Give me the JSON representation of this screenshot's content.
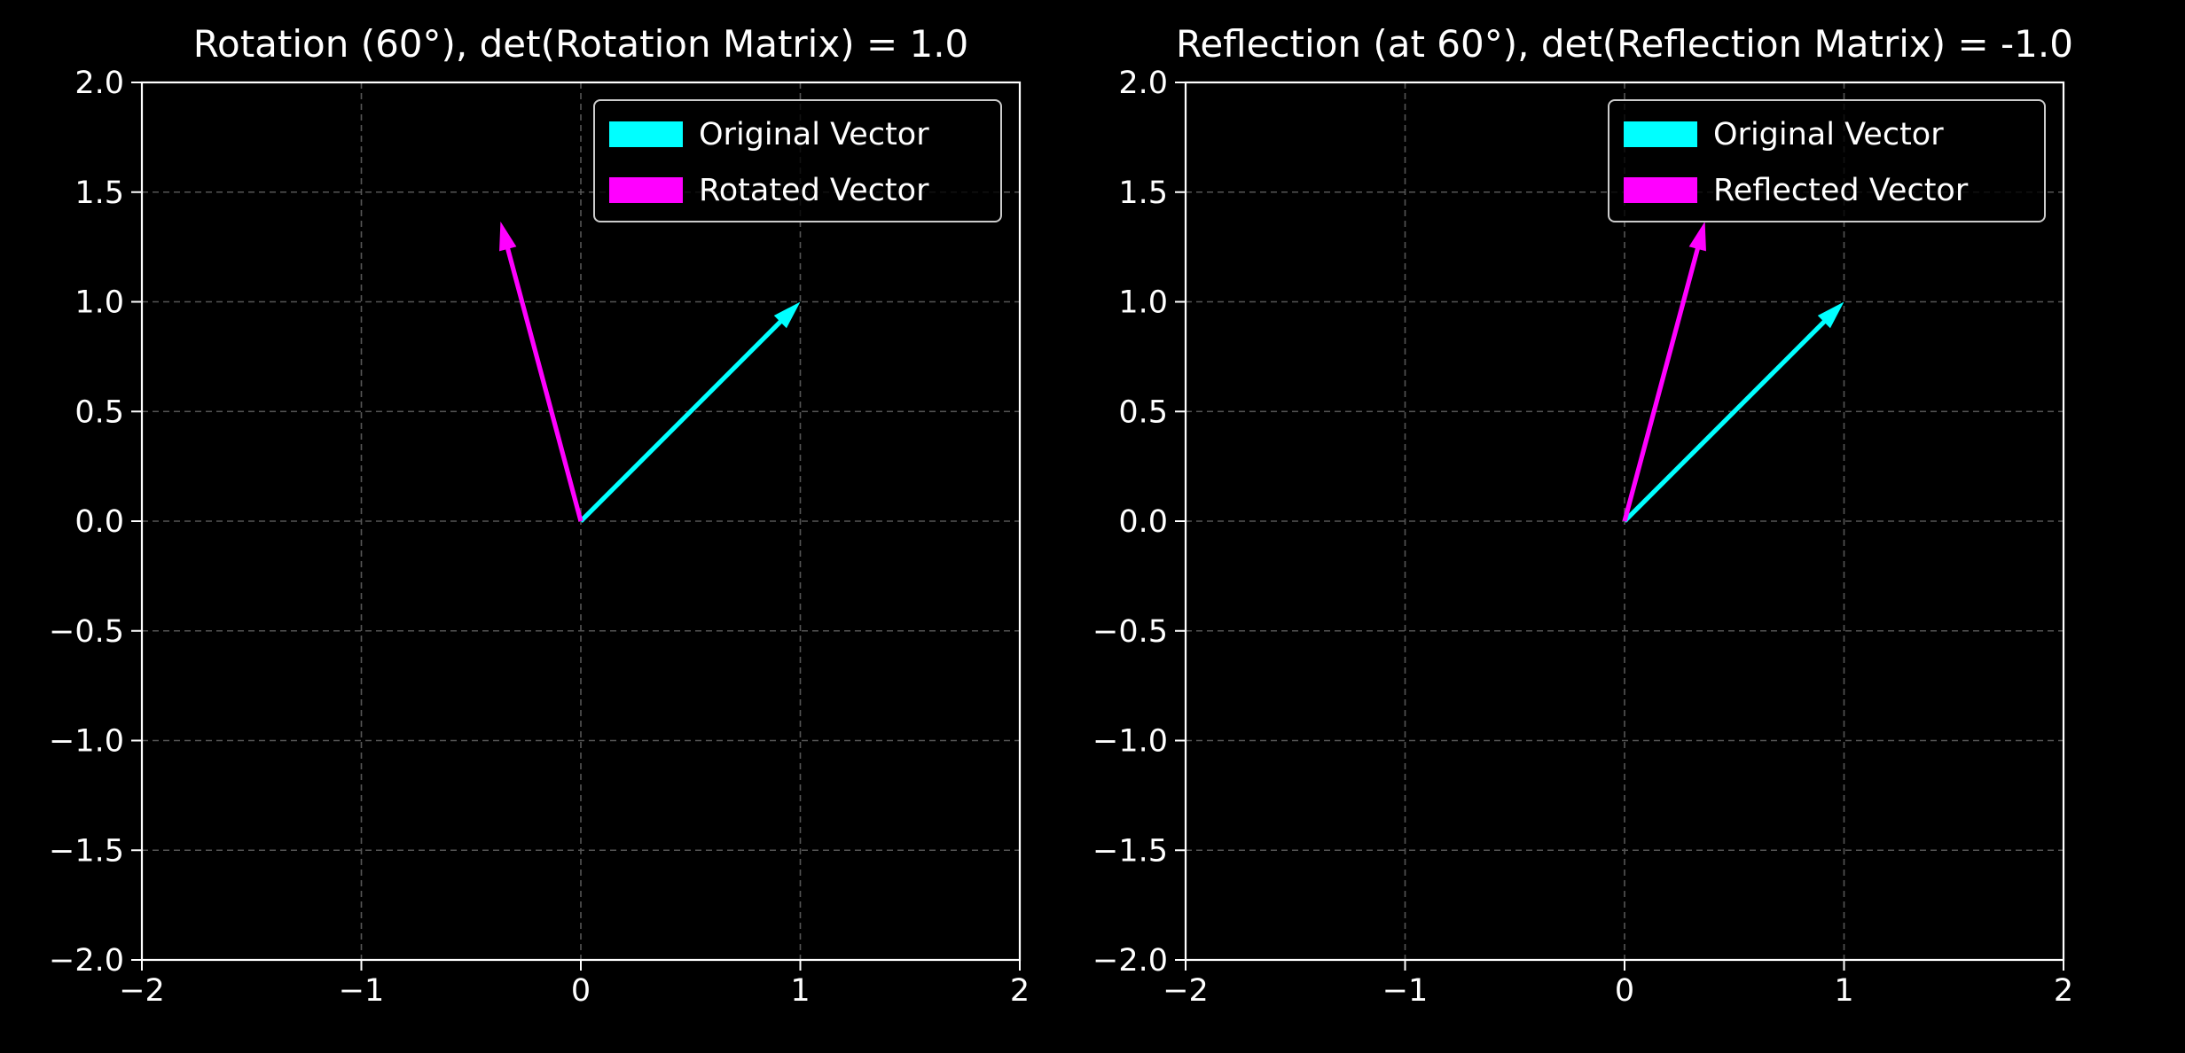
{
  "colors": {
    "background": "#000000",
    "axes": "#ffffff",
    "grid": "#555555",
    "original": "#00ffff",
    "transformed": "#ff00ff"
  },
  "chart_data": [
    {
      "type": "vector",
      "title": "Rotation (60°), det(Rotation Matrix) = 1.0",
      "xlim": [
        -2,
        2
      ],
      "ylim": [
        -2,
        2
      ],
      "xticks": [
        -2,
        -1,
        0,
        1,
        2
      ],
      "yticks": [
        -2.0,
        -1.5,
        -1.0,
        -0.5,
        0.0,
        0.5,
        1.0,
        1.5,
        2.0
      ],
      "xtick_labels": [
        "−2",
        "−1",
        "0",
        "1",
        "2"
      ],
      "ytick_labels": [
        "−2.0",
        "−1.5",
        "−1.0",
        "−0.5",
        "0.0",
        "0.5",
        "1.0",
        "1.5",
        "2.0"
      ],
      "grid": true,
      "legend_position": "top-right",
      "series": [
        {
          "name": "Original Vector",
          "color": "#00ffff",
          "origin": [
            0,
            0
          ],
          "vector": [
            1,
            1
          ]
        },
        {
          "name": "Rotated Vector",
          "color": "#ff00ff",
          "origin": [
            0,
            0
          ],
          "vector": [
            -0.366,
            1.366
          ]
        }
      ]
    },
    {
      "type": "vector",
      "title": "Reflection (at 60°), det(Reflection Matrix) = -1.0",
      "xlim": [
        -2,
        2
      ],
      "ylim": [
        -2,
        2
      ],
      "xticks": [
        -2,
        -1,
        0,
        1,
        2
      ],
      "yticks": [
        -2.0,
        -1.5,
        -1.0,
        -0.5,
        0.0,
        0.5,
        1.0,
        1.5,
        2.0
      ],
      "xtick_labels": [
        "−2",
        "−1",
        "0",
        "1",
        "2"
      ],
      "ytick_labels": [
        "−2.0",
        "−1.5",
        "−1.0",
        "−0.5",
        "0.0",
        "0.5",
        "1.0",
        "1.5",
        "2.0"
      ],
      "grid": true,
      "legend_position": "top-right",
      "series": [
        {
          "name": "Original Vector",
          "color": "#00ffff",
          "origin": [
            0,
            0
          ],
          "vector": [
            1,
            1
          ]
        },
        {
          "name": "Reflected Vector",
          "color": "#ff00ff",
          "origin": [
            0,
            0
          ],
          "vector": [
            0.366,
            1.366
          ]
        }
      ]
    }
  ]
}
